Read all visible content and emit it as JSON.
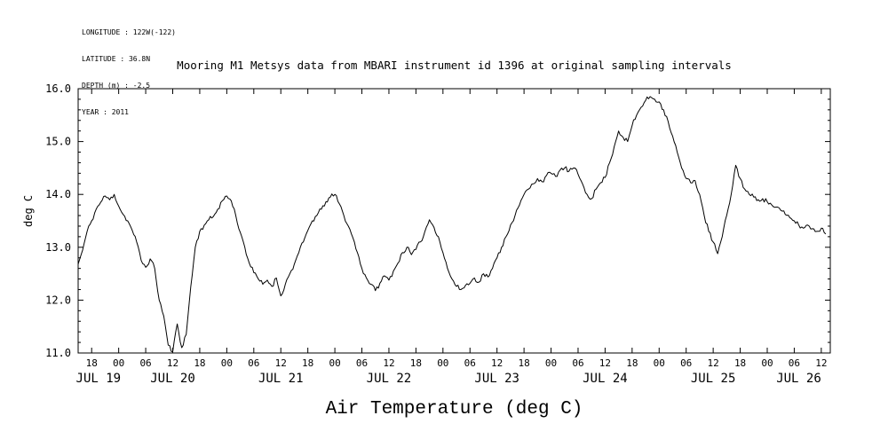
{
  "header": {
    "meta_lines": [
      "LONGITUDE : 122W(-122)",
      "LATITUDE : 36.8N",
      "DEPTH (m) : -2.5",
      "YEAR : 2011"
    ]
  },
  "title": "Mooring M1 Metsys data from MBARI instrument id 1396 at original sampling intervals",
  "chart_data": {
    "type": "line",
    "title": "Mooring M1 Metsys data from MBARI instrument id 1396 at original sampling intervals",
    "xlabel": "Air Temperature (deg C)",
    "ylabel": "deg C",
    "ylim": [
      11.0,
      16.0
    ],
    "y_major_ticks": [
      11.0,
      12.0,
      13.0,
      14.0,
      15.0,
      16.0
    ],
    "y_tick_labels": [
      "11.0",
      "12.0",
      "13.0",
      "14.0",
      "15.0",
      "16.0"
    ],
    "y_minor_step": 0.2,
    "x_axis_note": "hours since JUL 19 2011 00:00",
    "xlim_hours": [
      15,
      182
    ],
    "x_first_tick_hour": 18,
    "x_last_tick_hour": 180,
    "x_major_tick_step_hours": 6,
    "day_labels": [
      {
        "label": "JUL 19",
        "hour": 19.5
      },
      {
        "label": "JUL 20",
        "hour": 36
      },
      {
        "label": "JUL 21",
        "hour": 60
      },
      {
        "label": "JUL 22",
        "hour": 84
      },
      {
        "label": "JUL 23",
        "hour": 108
      },
      {
        "label": "JUL 24",
        "hour": 132
      },
      {
        "label": "JUL 25",
        "hour": 156
      },
      {
        "label": "JUL 26",
        "hour": 175
      }
    ],
    "grid": false,
    "legend": false,
    "background": "#ffffff",
    "line_color": "#000000",
    "noise_amplitude": 0.045,
    "noise_seed": 11,
    "series": [
      {
        "name": "Air Temperature (deg C)",
        "x_start_hour": 15,
        "x_step_hours": 1,
        "values": [
          12.68,
          12.95,
          13.3,
          13.5,
          13.72,
          13.85,
          13.97,
          13.9,
          14.0,
          13.78,
          13.62,
          13.5,
          13.32,
          13.1,
          12.75,
          12.62,
          12.78,
          12.6,
          12.0,
          11.7,
          11.15,
          11.02,
          11.55,
          11.1,
          11.35,
          12.25,
          13.0,
          13.3,
          13.42,
          13.52,
          13.58,
          13.72,
          13.88,
          13.97,
          13.88,
          13.6,
          13.28,
          13.0,
          12.7,
          12.52,
          12.4,
          12.3,
          12.38,
          12.26,
          12.42,
          12.08,
          12.3,
          12.5,
          12.68,
          12.9,
          13.1,
          13.32,
          13.5,
          13.6,
          13.72,
          13.86,
          13.95,
          14.0,
          13.82,
          13.6,
          13.4,
          13.18,
          12.9,
          12.6,
          12.42,
          12.3,
          12.18,
          12.32,
          12.46,
          12.38,
          12.55,
          12.7,
          12.9,
          13.0,
          12.86,
          12.96,
          13.1,
          13.3,
          13.52,
          13.38,
          13.2,
          12.9,
          12.6,
          12.4,
          12.26,
          12.2,
          12.28,
          12.32,
          12.42,
          12.34,
          12.5,
          12.44,
          12.6,
          12.8,
          13.0,
          13.2,
          13.42,
          13.6,
          13.8,
          14.0,
          14.1,
          14.2,
          14.3,
          14.24,
          14.36,
          14.4,
          14.34,
          14.46,
          14.5,
          14.44,
          14.5,
          14.38,
          14.2,
          14.0,
          13.92,
          14.1,
          14.22,
          14.32,
          14.6,
          14.9,
          15.2,
          15.08,
          15.0,
          15.3,
          15.5,
          15.65,
          15.78,
          15.85,
          15.8,
          15.75,
          15.6,
          15.38,
          15.1,
          14.8,
          14.5,
          14.3,
          14.22,
          14.26,
          14.0,
          13.6,
          13.3,
          13.1,
          12.88,
          13.2,
          13.6,
          14.0,
          14.55,
          14.3,
          14.1,
          14.0,
          13.95,
          13.9,
          13.92,
          13.86,
          13.8,
          13.76,
          13.7,
          13.62,
          13.56,
          13.5,
          13.42,
          13.36,
          13.42,
          13.35,
          13.3,
          13.36,
          13.25
        ]
      }
    ]
  }
}
